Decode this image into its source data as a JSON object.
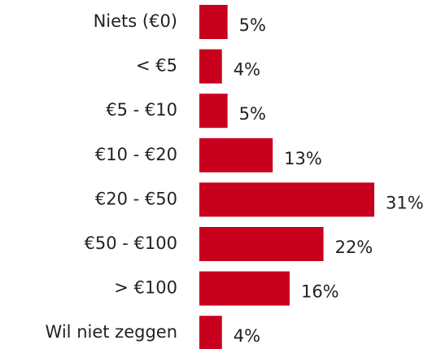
{
  "chart_data": {
    "type": "bar",
    "orientation": "horizontal",
    "categories": [
      "Niets (€0)",
      "< €5",
      "€5 - €10",
      "€10 - €20",
      "€20 - €50",
      "€50 - €100",
      "> €100",
      "Wil niet zeggen"
    ],
    "values": [
      5,
      4,
      5,
      13,
      31,
      22,
      16,
      4
    ],
    "value_labels": [
      "5%",
      "4%",
      "5%",
      "13%",
      "31%",
      "22%",
      "16%",
      "4%"
    ],
    "color": "#c8001e"
  }
}
